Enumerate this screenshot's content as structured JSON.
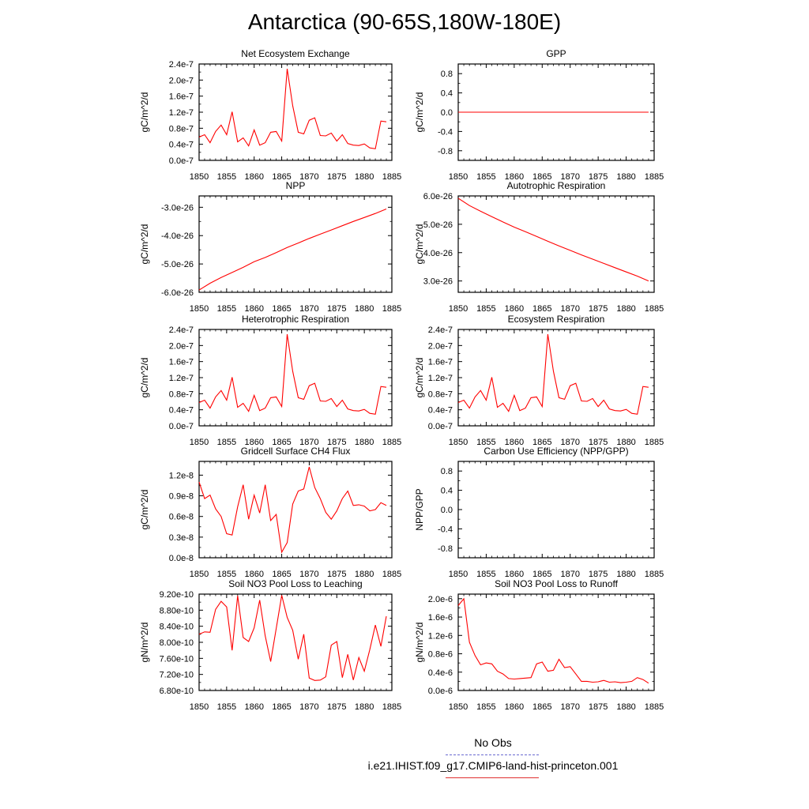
{
  "title": "Antarctica (90-65S,180W-180E)",
  "legend": {
    "obs_label": "No Obs",
    "model_label": "i.e21.IHIST.f09_g17.CMIP6-land-hist-princeton.001",
    "obs_color": "#6a6ad0",
    "model_color": "#ff0000"
  },
  "chart_data": [
    {
      "type": "line",
      "title": "Net Ecosystem Exchange",
      "ylabel": "gC/m^2/d",
      "xlim": [
        1850,
        1885
      ],
      "xticks": [
        "1850",
        "1855",
        "1860",
        "1865",
        "1870",
        "1875",
        "1880",
        "1885"
      ],
      "ylim": [
        0,
        2.4e-07
      ],
      "yticks": [
        [
          0,
          "0.0e-7"
        ],
        [
          4e-08,
          "0.4e-7"
        ],
        [
          8e-08,
          "0.8e-7"
        ],
        [
          1.2e-07,
          "1.2e-7"
        ],
        [
          1.6e-07,
          "1.6e-7"
        ],
        [
          2e-07,
          "2.0e-7"
        ],
        [
          2.4e-07,
          "2.4e-7"
        ]
      ],
      "series": [
        {
          "x": [
            1850,
            1851,
            1852,
            1853,
            1854,
            1855,
            1856,
            1857,
            1858,
            1859,
            1860,
            1861,
            1862,
            1863,
            1864,
            1865,
            1866,
            1867,
            1868,
            1869,
            1870,
            1871,
            1872,
            1873,
            1874,
            1875,
            1876,
            1877,
            1878,
            1879,
            1880,
            1881,
            1882,
            1883,
            1884
          ],
          "y": [
            5.8e-08,
            6.4e-08,
            4.4e-08,
            7.2e-08,
            8.8e-08,
            6.4e-08,
            1.21e-07,
            4.6e-08,
            5.6e-08,
            3.6e-08,
            7.6e-08,
            3.8e-08,
            4.4e-08,
            7e-08,
            7.2e-08,
            4.8e-08,
            2.28e-07,
            1.36e-07,
            7e-08,
            6.6e-08,
            1e-07,
            1.06e-07,
            6.2e-08,
            6.1e-08,
            6.8e-08,
            4.8e-08,
            6.4e-08,
            4.2e-08,
            3.8e-08,
            3.7e-08,
            4.1e-08,
            3.1e-08,
            2.9e-08,
            9.8e-08,
            9.6e-08
          ]
        }
      ]
    },
    {
      "type": "line",
      "title": "GPP",
      "ylabel": "gC/m^2/d",
      "xlim": [
        1850,
        1885
      ],
      "xticks": [
        "1850",
        "1855",
        "1860",
        "1865",
        "1870",
        "1875",
        "1880",
        "1885"
      ],
      "ylim": [
        -1,
        1
      ],
      "yticks": [
        [
          -0.8,
          "-0.8"
        ],
        [
          -0.4,
          "-0.4"
        ],
        [
          0,
          "0.0"
        ],
        [
          0.4,
          "0.4"
        ],
        [
          0.8,
          "0.8"
        ]
      ],
      "series": [
        {
          "x": [
            1850,
            1884
          ],
          "y": [
            0,
            0
          ]
        }
      ]
    },
    {
      "type": "line",
      "title": "NPP",
      "ylabel": "gC/m^2/d",
      "xlim": [
        1850,
        1885
      ],
      "xticks": [
        "1850",
        "1855",
        "1860",
        "1865",
        "1870",
        "1875",
        "1880",
        "1885"
      ],
      "ylim": [
        -6e-26,
        -2.6e-26
      ],
      "yticks": [
        [
          -6e-26,
          "-6.0e-26"
        ],
        [
          -5e-26,
          "-5.0e-26"
        ],
        [
          -4e-26,
          "-4.0e-26"
        ],
        [
          -3e-26,
          "-3.0e-26"
        ]
      ],
      "series": [
        {
          "x": [
            1850,
            1852,
            1854,
            1856,
            1858,
            1860,
            1862,
            1864,
            1866,
            1868,
            1870,
            1872,
            1874,
            1876,
            1878,
            1880,
            1882,
            1884
          ],
          "y": [
            -5.92e-26,
            -5.68e-26,
            -5.48e-26,
            -5.3e-26,
            -5.12e-26,
            -4.92e-26,
            -4.77e-26,
            -4.6e-26,
            -4.42e-26,
            -4.26e-26,
            -4.1e-26,
            -3.95e-26,
            -3.8e-26,
            -3.65e-26,
            -3.5e-26,
            -3.36e-26,
            -3.22e-26,
            -3.06e-26
          ]
        }
      ]
    },
    {
      "type": "line",
      "title": "Autotrophic Respiration",
      "ylabel": "gC/m^2/d",
      "xlim": [
        1850,
        1885
      ],
      "xticks": [
        "1850",
        "1855",
        "1860",
        "1865",
        "1870",
        "1875",
        "1880",
        "1885"
      ],
      "ylim": [
        2.6e-26,
        6e-26
      ],
      "yticks": [
        [
          3e-26,
          "3.0e-26"
        ],
        [
          4e-26,
          "4.0e-26"
        ],
        [
          5e-26,
          "5.0e-26"
        ],
        [
          6e-26,
          "6.0e-26"
        ]
      ],
      "series": [
        {
          "x": [
            1850,
            1852,
            1854,
            1856,
            1858,
            1860,
            1862,
            1864,
            1866,
            1868,
            1870,
            1872,
            1874,
            1876,
            1878,
            1880,
            1882,
            1884
          ],
          "y": [
            5.92e-26,
            5.66e-26,
            5.46e-26,
            5.27e-26,
            5.08e-26,
            4.9e-26,
            4.74e-26,
            4.57e-26,
            4.4e-26,
            4.24e-26,
            4.08e-26,
            3.92e-26,
            3.77e-26,
            3.62e-26,
            3.47e-26,
            3.32e-26,
            3.17e-26,
            3e-26
          ]
        }
      ]
    },
    {
      "type": "line",
      "title": "Heterotrophic Respiration",
      "ylabel": "gC/m^2/d",
      "xlim": [
        1850,
        1885
      ],
      "xticks": [
        "1850",
        "1855",
        "1860",
        "1865",
        "1870",
        "1875",
        "1880",
        "1885"
      ],
      "ylim": [
        0,
        2.4e-07
      ],
      "yticks": [
        [
          0,
          "0.0e-7"
        ],
        [
          4e-08,
          "0.4e-7"
        ],
        [
          8e-08,
          "0.8e-7"
        ],
        [
          1.2e-07,
          "1.2e-7"
        ],
        [
          1.6e-07,
          "1.6e-7"
        ],
        [
          2e-07,
          "2.0e-7"
        ],
        [
          2.4e-07,
          "2.4e-7"
        ]
      ],
      "series": [
        {
          "x": [
            1850,
            1851,
            1852,
            1853,
            1854,
            1855,
            1856,
            1857,
            1858,
            1859,
            1860,
            1861,
            1862,
            1863,
            1864,
            1865,
            1866,
            1867,
            1868,
            1869,
            1870,
            1871,
            1872,
            1873,
            1874,
            1875,
            1876,
            1877,
            1878,
            1879,
            1880,
            1881,
            1882,
            1883,
            1884
          ],
          "y": [
            5.8e-08,
            6.4e-08,
            4.4e-08,
            7.2e-08,
            8.8e-08,
            6.4e-08,
            1.21e-07,
            4.6e-08,
            5.6e-08,
            3.6e-08,
            7.6e-08,
            3.8e-08,
            4.4e-08,
            7e-08,
            7.2e-08,
            4.8e-08,
            2.28e-07,
            1.36e-07,
            7e-08,
            6.6e-08,
            1e-07,
            1.06e-07,
            6.2e-08,
            6.1e-08,
            6.8e-08,
            4.8e-08,
            6.4e-08,
            4.2e-08,
            3.8e-08,
            3.7e-08,
            4.1e-08,
            3.1e-08,
            2.9e-08,
            9.8e-08,
            9.6e-08
          ]
        }
      ]
    },
    {
      "type": "line",
      "title": "Ecosystem Respiration",
      "ylabel": "gC/m^2/d",
      "xlim": [
        1850,
        1885
      ],
      "xticks": [
        "1850",
        "1855",
        "1860",
        "1865",
        "1870",
        "1875",
        "1880",
        "1885"
      ],
      "ylim": [
        0,
        2.4e-07
      ],
      "yticks": [
        [
          0,
          "0.0e-7"
        ],
        [
          4e-08,
          "0.4e-7"
        ],
        [
          8e-08,
          "0.8e-7"
        ],
        [
          1.2e-07,
          "1.2e-7"
        ],
        [
          1.6e-07,
          "1.6e-7"
        ],
        [
          2e-07,
          "2.0e-7"
        ],
        [
          2.4e-07,
          "2.4e-7"
        ]
      ],
      "series": [
        {
          "x": [
            1850,
            1851,
            1852,
            1853,
            1854,
            1855,
            1856,
            1857,
            1858,
            1859,
            1860,
            1861,
            1862,
            1863,
            1864,
            1865,
            1866,
            1867,
            1868,
            1869,
            1870,
            1871,
            1872,
            1873,
            1874,
            1875,
            1876,
            1877,
            1878,
            1879,
            1880,
            1881,
            1882,
            1883,
            1884
          ],
          "y": [
            5.8e-08,
            6.4e-08,
            4.4e-08,
            7.2e-08,
            8.8e-08,
            6.4e-08,
            1.21e-07,
            4.6e-08,
            5.6e-08,
            3.6e-08,
            7.6e-08,
            3.8e-08,
            4.4e-08,
            7e-08,
            7.2e-08,
            4.8e-08,
            2.28e-07,
            1.36e-07,
            7e-08,
            6.6e-08,
            1e-07,
            1.06e-07,
            6.2e-08,
            6.1e-08,
            6.8e-08,
            4.8e-08,
            6.4e-08,
            4.2e-08,
            3.8e-08,
            3.7e-08,
            4.1e-08,
            3.1e-08,
            2.9e-08,
            9.8e-08,
            9.6e-08
          ]
        }
      ]
    },
    {
      "type": "line",
      "title": "Gridcell Surface CH4 Flux",
      "ylabel": "gC/m^2/d",
      "xlim": [
        1850,
        1885
      ],
      "xticks": [
        "1850",
        "1855",
        "1860",
        "1865",
        "1870",
        "1875",
        "1880",
        "1885"
      ],
      "ylim": [
        0,
        1.4e-08
      ],
      "yticks": [
        [
          0,
          "0.0e-8"
        ],
        [
          3e-09,
          "0.3e-8"
        ],
        [
          6e-09,
          "0.6e-8"
        ],
        [
          9e-09,
          "0.9e-8"
        ],
        [
          1.2e-08,
          "1.2e-8"
        ]
      ],
      "series": [
        {
          "x": [
            1850,
            1851,
            1852,
            1853,
            1854,
            1855,
            1856,
            1857,
            1858,
            1859,
            1860,
            1861,
            1862,
            1863,
            1864,
            1865,
            1866,
            1867,
            1868,
            1869,
            1870,
            1871,
            1872,
            1873,
            1874,
            1875,
            1876,
            1877,
            1878,
            1879,
            1880,
            1881,
            1882,
            1883,
            1884
          ],
          "y": [
            1.1e-08,
            8.6e-09,
            9.1e-09,
            7.1e-09,
            6e-09,
            3.5e-09,
            3.3e-09,
            7.4e-09,
            1.06e-08,
            5.6e-09,
            9.1e-09,
            6.5e-09,
            1.06e-08,
            5.4e-09,
            6.3e-09,
            8e-10,
            2.2e-09,
            7.8e-09,
            9.7e-09,
            1e-08,
            1.32e-08,
            1.02e-08,
            8.6e-09,
            6.6e-09,
            5.6e-09,
            6.8e-09,
            8.6e-09,
            9.7e-09,
            7.6e-09,
            7.7e-09,
            7.5e-09,
            6.8e-09,
            7e-09,
            8e-09,
            7.6e-09
          ]
        }
      ]
    },
    {
      "type": "line",
      "title": "Carbon Use Efficiency (NPP/GPP)",
      "ylabel": "NPP/GPP",
      "xlim": [
        1850,
        1885
      ],
      "xticks": [
        "1850",
        "1855",
        "1860",
        "1865",
        "1870",
        "1875",
        "1880",
        "1885"
      ],
      "ylim": [
        -1,
        1
      ],
      "yticks": [
        [
          -0.8,
          "-0.8"
        ],
        [
          -0.4,
          "-0.4"
        ],
        [
          0,
          "0.0"
        ],
        [
          0.4,
          "0.4"
        ],
        [
          0.8,
          "0.8"
        ]
      ],
      "series": []
    },
    {
      "type": "line",
      "title": "Soil NO3 Pool Loss to Leaching",
      "ylabel": "gN/m^2/d",
      "xlim": [
        1850,
        1885
      ],
      "xticks": [
        "1850",
        "1855",
        "1860",
        "1865",
        "1870",
        "1875",
        "1880",
        "1885"
      ],
      "ylim": [
        6.8e-10,
        9.2e-10
      ],
      "yticks": [
        [
          6.8e-10,
          "6.80e-10"
        ],
        [
          7.2e-10,
          "7.20e-10"
        ],
        [
          7.6e-10,
          "7.60e-10"
        ],
        [
          8e-10,
          "8.00e-10"
        ],
        [
          8.4e-10,
          "8.40e-10"
        ],
        [
          8.8e-10,
          "8.80e-10"
        ],
        [
          9.2e-10,
          "9.20e-10"
        ]
      ],
      "series": [
        {
          "x": [
            1850,
            1851,
            1852,
            1853,
            1854,
            1855,
            1856,
            1857,
            1858,
            1859,
            1860,
            1861,
            1862,
            1863,
            1864,
            1865,
            1866,
            1867,
            1868,
            1869,
            1870,
            1871,
            1872,
            1873,
            1874,
            1875,
            1876,
            1877,
            1878,
            1879,
            1880,
            1881,
            1882,
            1883,
            1884
          ],
          "y": [
            8.2e-10,
            8.26e-10,
            8.25e-10,
            8.82e-10,
            9.02e-10,
            8.88e-10,
            7.8e-10,
            9.16e-10,
            8.12e-10,
            8.02e-10,
            8.36e-10,
            9.05e-10,
            8.16e-10,
            7.52e-10,
            8.34e-10,
            9.17e-10,
            8.62e-10,
            8.3e-10,
            7.58e-10,
            8.2e-10,
            7.11e-10,
            7.05e-10,
            7.06e-10,
            7.14e-10,
            7.93e-10,
            8.02e-10,
            7.12e-10,
            7.7e-10,
            7.06e-10,
            7.62e-10,
            7.28e-10,
            7.82e-10,
            8.43e-10,
            7.9e-10,
            8.65e-10
          ]
        }
      ]
    },
    {
      "type": "line",
      "title": "Soil NO3 Pool Loss to Runoff",
      "ylabel": "gN/m^2/d",
      "xlim": [
        1850,
        1885
      ],
      "xticks": [
        "1850",
        "1855",
        "1860",
        "1865",
        "1870",
        "1875",
        "1880",
        "1885"
      ],
      "ylim": [
        0,
        2.1e-06
      ],
      "yticks": [
        [
          0,
          "0.0e-6"
        ],
        [
          4e-07,
          "0.4e-6"
        ],
        [
          8e-07,
          "0.8e-6"
        ],
        [
          1.2e-06,
          "1.2e-6"
        ],
        [
          1.6e-06,
          "1.6e-6"
        ],
        [
          2e-06,
          "2.0e-6"
        ]
      ],
      "series": [
        {
          "x": [
            1850,
            1851,
            1852,
            1853,
            1854,
            1855,
            1856,
            1857,
            1858,
            1859,
            1860,
            1861,
            1862,
            1863,
            1864,
            1865,
            1866,
            1867,
            1868,
            1869,
            1870,
            1871,
            1872,
            1873,
            1874,
            1875,
            1876,
            1877,
            1878,
            1879,
            1880,
            1881,
            1882,
            1883,
            1884
          ],
          "y": [
            1.85e-06,
            2e-06,
            1.05e-06,
            7.6e-07,
            5.6e-07,
            6e-07,
            5.8e-07,
            4.2e-07,
            3.6e-07,
            2.6e-07,
            2.5e-07,
            2.6e-07,
            2.7e-07,
            2.8e-07,
            5.8e-07,
            6.2e-07,
            4.2e-07,
            4.4e-07,
            6.8e-07,
            5e-07,
            5.2e-07,
            3.6e-07,
            2e-07,
            2e-07,
            1.8e-07,
            1.9e-07,
            2.2e-07,
            1.8e-07,
            1.9e-07,
            1.7e-07,
            1.8e-07,
            2e-07,
            2.8e-07,
            2.4e-07,
            1.6e-07
          ]
        }
      ]
    }
  ]
}
